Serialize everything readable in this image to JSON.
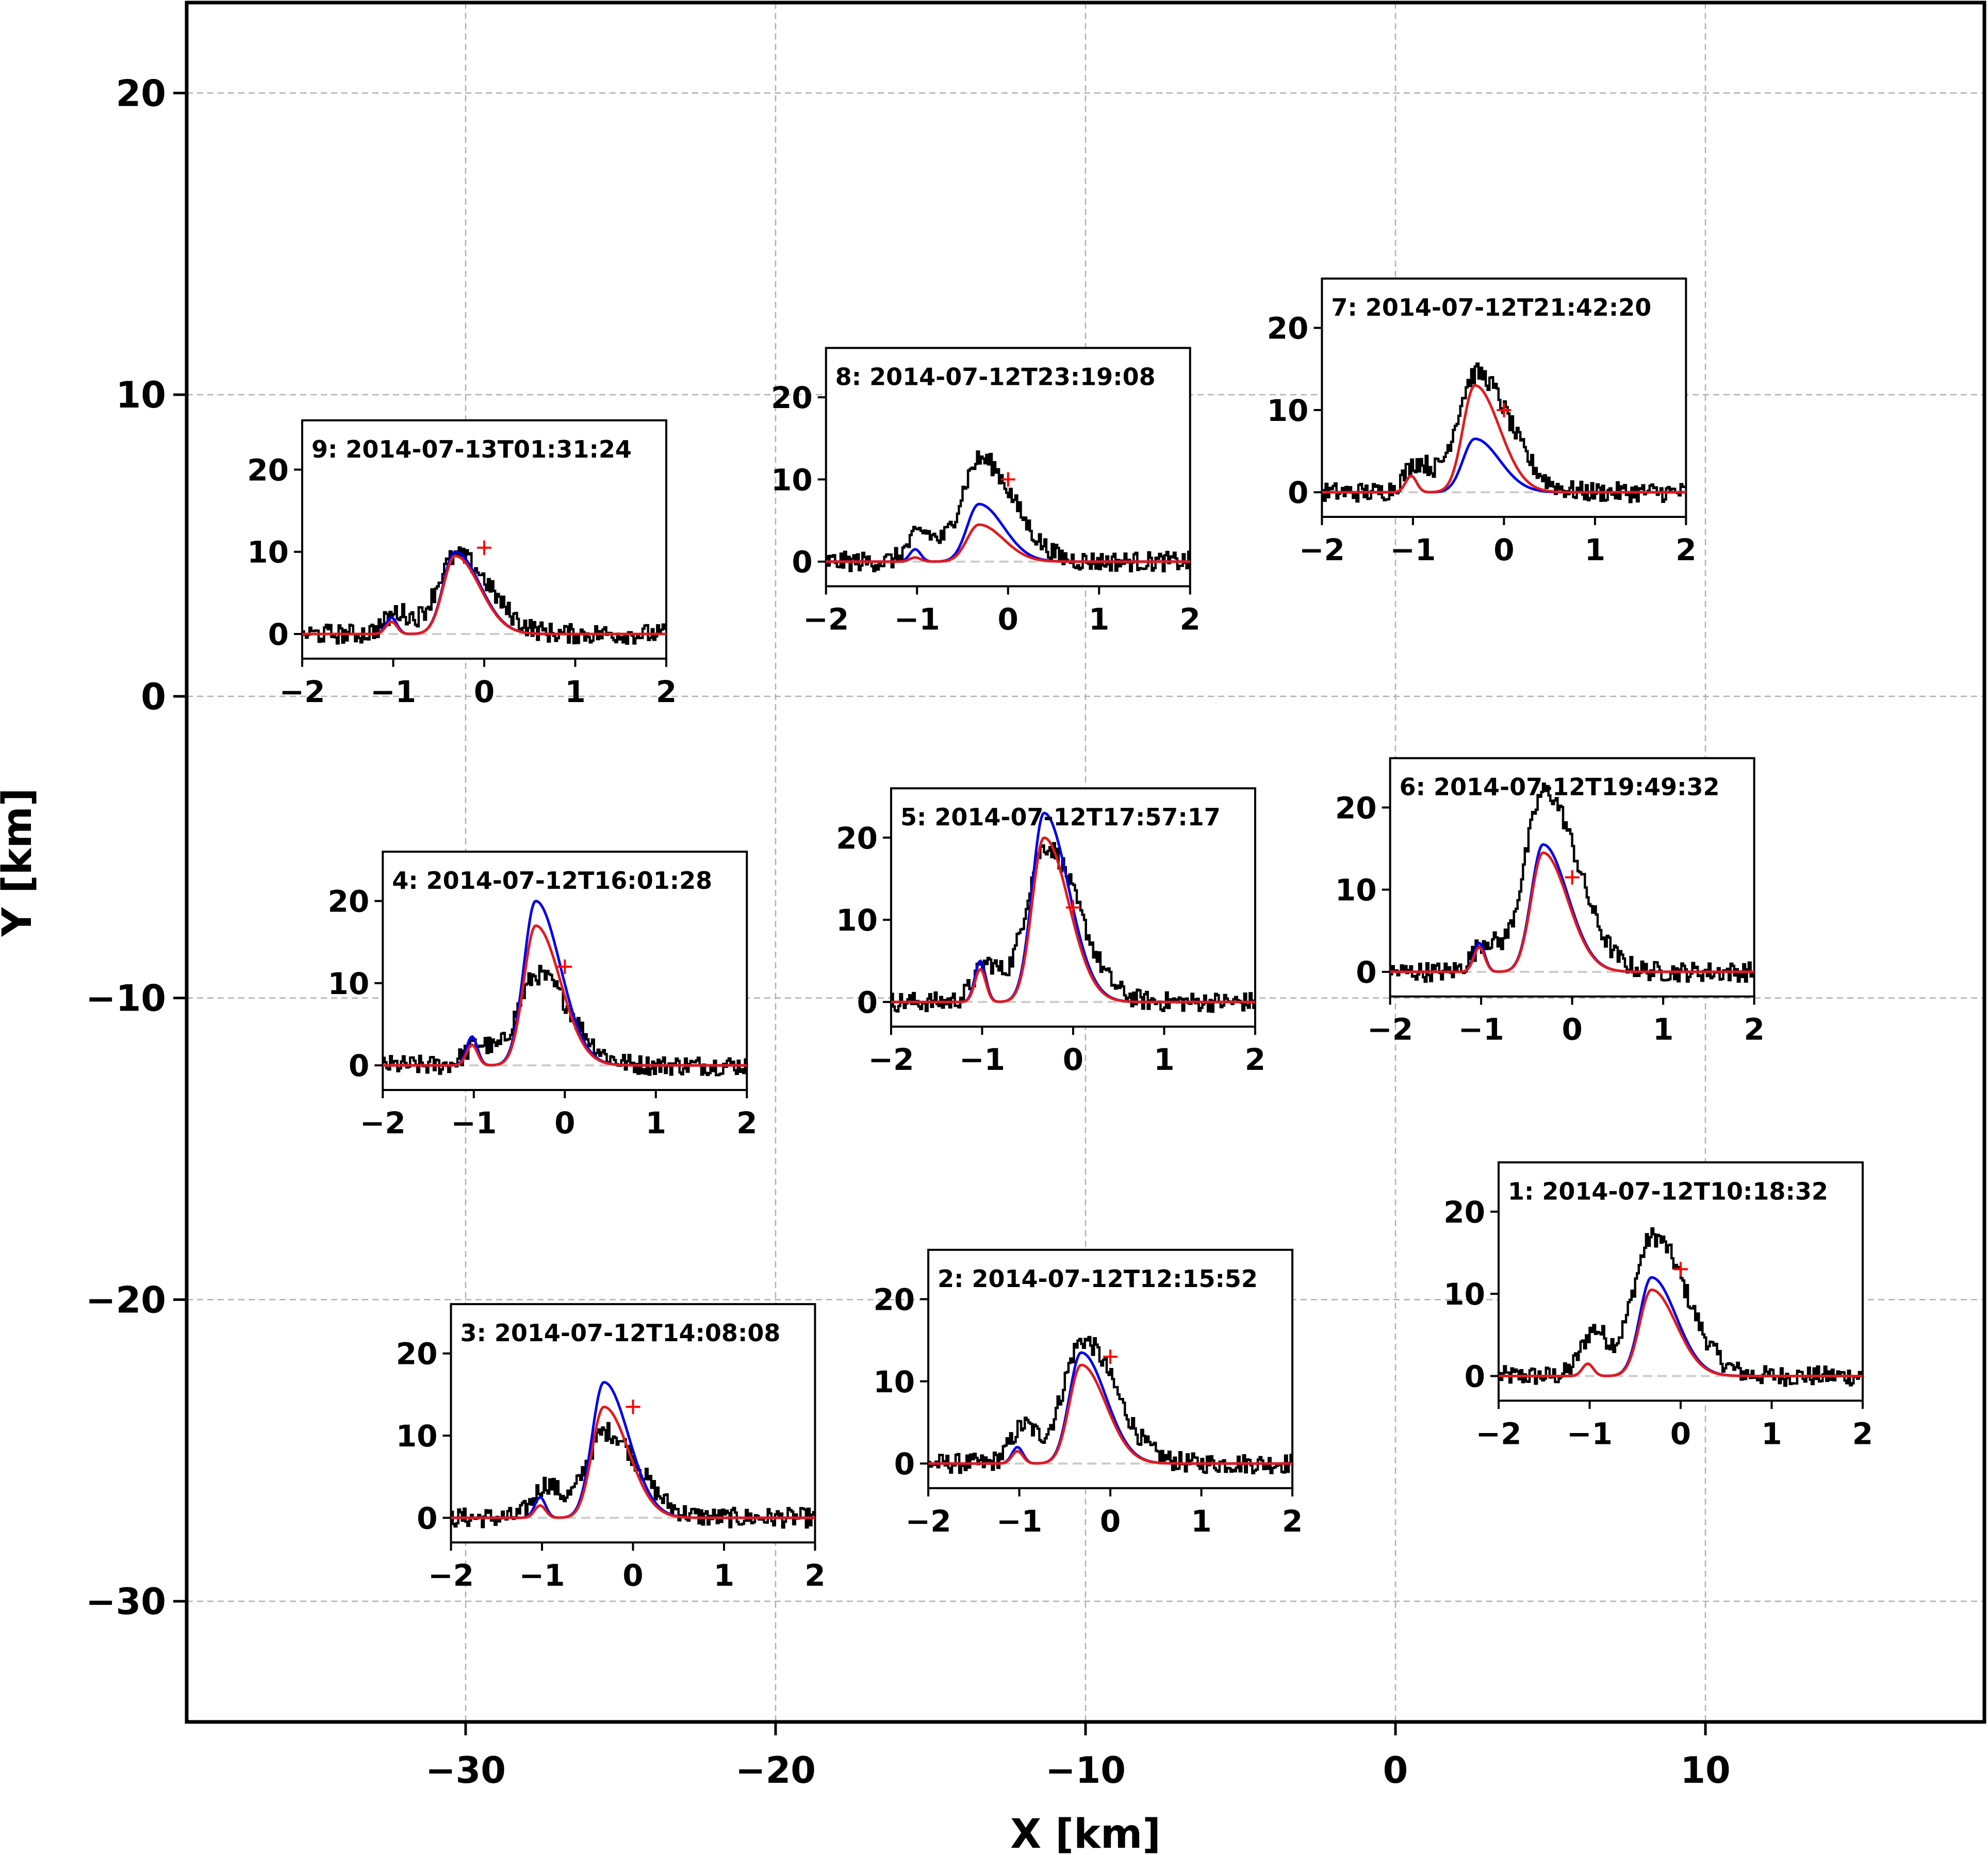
{
  "chart_data": {
    "type": "line",
    "title": "",
    "xlabel": "X [km]",
    "ylabel": "Y [km]",
    "xlim": [
      -39,
      19
    ],
    "ylim": [
      -34,
      23
    ],
    "xticks": [
      -30,
      -20,
      -10,
      0,
      10
    ],
    "yticks": [
      20,
      10,
      0,
      -10,
      -20,
      -30
    ],
    "xtick_labels": [
      "−30",
      "−20",
      "−10",
      "0",
      "10"
    ],
    "ytick_labels": [
      "20",
      "10",
      "0",
      "−10",
      "−20",
      "−30"
    ],
    "grid": true,
    "colors": {
      "observed": "#000000",
      "model_blue": "#0000ee",
      "model_red": "#e31a1c",
      "baseline": "#cccccc",
      "marker": "#ff0000"
    },
    "inset_axes": {
      "xlim": [
        -2,
        2
      ],
      "xticks": [
        -2,
        -1,
        0,
        1,
        2
      ],
      "xtick_labels": [
        "−2",
        "−1",
        "0",
        "1",
        "2"
      ],
      "yticks": [
        0,
        10,
        20
      ],
      "ytick_labels": [
        "0",
        "10",
        "20"
      ]
    },
    "insets": [
      {
        "id": 1,
        "label": "1: 2014-07-12T10:18:32",
        "center_km": [
          9.2,
          -19.4
        ],
        "ylim": [
          -3,
          26
        ],
        "peak_obs": 17,
        "side_obs": 5.5,
        "blue_peak": 12,
        "red_peak": 10.5,
        "blue_side": 1.5,
        "red_side": 1.5,
        "marker": [
          0.0,
          13
        ]
      },
      {
        "id": 2,
        "label": "2: 2014-07-12T12:15:52",
        "center_km": [
          -9.2,
          -22.3
        ],
        "ylim": [
          -3,
          26
        ],
        "peak_obs": 15,
        "side_obs": 4.5,
        "blue_peak": 13.5,
        "red_peak": 12,
        "blue_side": 2.0,
        "red_side": 1.5,
        "marker": [
          0.0,
          13
        ]
      },
      {
        "id": 3,
        "label": "3: 2014-07-12T14:08:08",
        "center_km": [
          -24.6,
          -24.1
        ],
        "ylim": [
          -3,
          26
        ],
        "peak_obs": 10.5,
        "side_obs": 4.0,
        "blue_peak": 16.5,
        "red_peak": 13.5,
        "blue_side": 2.5,
        "red_side": 1.5,
        "marker": [
          0.0,
          13.5
        ]
      },
      {
        "id": 4,
        "label": "4: 2014-07-12T16:01:28",
        "center_km": [
          -26.8,
          -9.1
        ],
        "ylim": [
          -3,
          26
        ],
        "peak_obs": 11,
        "side_obs": 2.5,
        "blue_peak": 20,
        "red_peak": 17,
        "blue_side": 3.5,
        "red_side": 2.5,
        "marker": [
          0.0,
          12
        ]
      },
      {
        "id": 5,
        "label": "5: 2014-07-12T17:57:17",
        "center_km": [
          -10.4,
          -7.0
        ],
        "ylim": [
          -3,
          26
        ],
        "peak_obs": 19,
        "side_obs": 4.5,
        "blue_peak": 23,
        "red_peak": 20,
        "blue_side": 5.0,
        "red_side": 4.0,
        "marker": [
          0.0,
          11.5
        ]
      },
      {
        "id": 6,
        "label": "6: 2014-07-12T19:49:32",
        "center_km": [
          5.7,
          -6.0
        ],
        "ylim": [
          -3,
          26
        ],
        "peak_obs": 22,
        "side_obs": 3.5,
        "blue_peak": 15.5,
        "red_peak": 14.5,
        "blue_side": 3.5,
        "red_side": 3.0,
        "marker": [
          0.0,
          11.5
        ]
      },
      {
        "id": 7,
        "label": "7: 2014-07-12T21:42:20",
        "center_km": [
          3.5,
          9.9
        ],
        "ylim": [
          -3,
          26
        ],
        "peak_obs": 14.5,
        "side_obs": 3.5,
        "blue_peak": 6.5,
        "red_peak": 13,
        "blue_side": 2.0,
        "red_side": 2.0,
        "marker": [
          0.0,
          10
        ]
      },
      {
        "id": 8,
        "label": "8: 2014-07-12T23:19:08",
        "center_km": [
          -12.5,
          7.6
        ],
        "ylim": [
          -3,
          26
        ],
        "peak_obs": 12.5,
        "side_obs": 3.5,
        "blue_peak": 7.0,
        "red_peak": 4.5,
        "blue_side": 1.5,
        "red_side": 0.5,
        "marker": [
          0.0,
          10
        ]
      },
      {
        "id": 9,
        "label": "9: 2014-07-13T01:31:24",
        "center_km": [
          -29.4,
          5.2
        ],
        "ylim": [
          -3,
          26
        ],
        "peak_obs": 9.5,
        "side_obs": 2.5,
        "blue_peak": 10,
        "red_peak": 9.5,
        "blue_side": 2.0,
        "red_side": 1.5,
        "marker": [
          0.0,
          10.5
        ]
      }
    ]
  }
}
